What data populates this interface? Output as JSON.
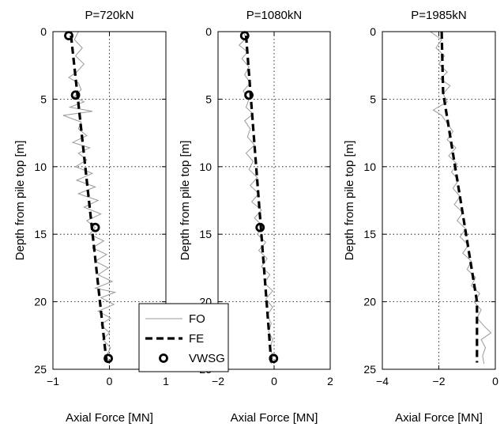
{
  "figure": {
    "ylabel": "Depth from pile top [m]",
    "xlabel": "Axial Force [MN]"
  },
  "legend": {
    "entries": [
      "FO",
      "FE",
      "VWSG"
    ]
  },
  "chart_data": [
    {
      "type": "line",
      "title": "P=720kN",
      "xlabel": "Axial Force [MN]",
      "ylabel": "Depth from pile top [m]",
      "xlim": [
        -1,
        1
      ],
      "ylim": [
        0,
        25
      ],
      "y_reversed": true,
      "xticks": [
        -1,
        0,
        1
      ],
      "yticks": [
        0,
        5,
        10,
        15,
        20,
        25
      ],
      "grid": true,
      "series": [
        {
          "name": "FO",
          "style": "thin gray solid",
          "points": [
            [
              -0.55,
              0
            ],
            [
              -0.62,
              0.6
            ],
            [
              -0.48,
              1.2
            ],
            [
              -0.6,
              1.8
            ],
            [
              -0.45,
              2.4
            ],
            [
              -0.58,
              3.0
            ],
            [
              -0.72,
              3.4
            ],
            [
              -0.55,
              3.8
            ],
            [
              -0.5,
              4.3
            ],
            [
              -0.62,
              4.8
            ],
            [
              -0.45,
              5.2
            ],
            [
              -0.7,
              5.6
            ],
            [
              -0.3,
              5.9
            ],
            [
              -0.82,
              6.2
            ],
            [
              -0.5,
              6.7
            ],
            [
              -0.55,
              7.2
            ],
            [
              -0.4,
              7.7
            ],
            [
              -0.65,
              8.2
            ],
            [
              -0.35,
              8.6
            ],
            [
              -0.55,
              9.0
            ],
            [
              -0.4,
              9.5
            ],
            [
              -0.6,
              10.0
            ],
            [
              -0.3,
              10.5
            ],
            [
              -0.58,
              11.0
            ],
            [
              -0.25,
              11.5
            ],
            [
              -0.55,
              12.0
            ],
            [
              -0.2,
              12.5
            ],
            [
              -0.45,
              13.0
            ],
            [
              -0.15,
              13.5
            ],
            [
              -0.4,
              14.0
            ],
            [
              -0.25,
              14.5
            ],
            [
              -0.35,
              15.0
            ],
            [
              -0.1,
              15.5
            ],
            [
              -0.3,
              16.0
            ],
            [
              -0.05,
              16.5
            ],
            [
              -0.25,
              17.0
            ],
            [
              -0.02,
              17.5
            ],
            [
              -0.2,
              18.0
            ],
            [
              0.05,
              18.5
            ],
            [
              -0.25,
              19.0
            ],
            [
              0.1,
              19.3
            ],
            [
              -0.15,
              19.7
            ],
            [
              0.08,
              20.2
            ],
            [
              -0.2,
              20.7
            ],
            [
              0.02,
              21.2
            ],
            [
              -0.15,
              21.7
            ],
            [
              0.0,
              22.3
            ],
            [
              -0.12,
              22.8
            ],
            [
              0.02,
              23.4
            ],
            [
              -0.05,
              24.0
            ],
            [
              0.0,
              24.5
            ]
          ]
        },
        {
          "name": "FE",
          "style": "thick black dashed",
          "points": [
            [
              -0.68,
              0.3
            ],
            [
              -0.05,
              24.5
            ]
          ]
        },
        {
          "name": "VWSG",
          "style": "open circle markers",
          "points": [
            [
              -0.72,
              0.3
            ],
            [
              -0.6,
              4.7
            ],
            [
              -0.25,
              14.5
            ],
            [
              -0.02,
              24.2
            ]
          ]
        }
      ]
    },
    {
      "type": "line",
      "title": "P=1080kN",
      "xlabel": "Axial Force [MN]",
      "ylabel": "Depth from pile top [m]",
      "xlim": [
        -2,
        2
      ],
      "ylim": [
        0,
        25
      ],
      "y_reversed": true,
      "xticks": [
        -2,
        0,
        2
      ],
      "yticks": [
        0,
        5,
        10,
        15,
        20,
        25
      ],
      "grid": true,
      "series": [
        {
          "name": "FO",
          "style": "thin gray solid",
          "points": [
            [
              -1.1,
              0
            ],
            [
              -1.0,
              0.5
            ],
            [
              -1.25,
              1.0
            ],
            [
              -0.95,
              1.5
            ],
            [
              -1.15,
              2.0
            ],
            [
              -0.9,
              2.6
            ],
            [
              -1.05,
              3.2
            ],
            [
              -0.85,
              3.8
            ],
            [
              -1.1,
              4.4
            ],
            [
              -0.9,
              5.0
            ],
            [
              -1.0,
              5.6
            ],
            [
              -0.75,
              6.1
            ],
            [
              -1.05,
              6.6
            ],
            [
              -0.85,
              7.2
            ],
            [
              -0.95,
              7.8
            ],
            [
              -0.7,
              8.4
            ],
            [
              -1.0,
              9.0
            ],
            [
              -0.75,
              9.6
            ],
            [
              -0.9,
              10.2
            ],
            [
              -0.6,
              10.8
            ],
            [
              -0.85,
              11.4
            ],
            [
              -0.55,
              12.0
            ],
            [
              -0.8,
              12.6
            ],
            [
              -0.45,
              13.2
            ],
            [
              -0.7,
              13.8
            ],
            [
              -0.4,
              14.4
            ],
            [
              -0.6,
              15.0
            ],
            [
              -0.3,
              15.6
            ],
            [
              -0.55,
              16.2
            ],
            [
              -0.25,
              16.8
            ],
            [
              -0.45,
              17.4
            ],
            [
              -0.15,
              18.0
            ],
            [
              -0.35,
              18.6
            ],
            [
              -0.05,
              19.2
            ],
            [
              -0.3,
              19.8
            ],
            [
              -0.05,
              20.4
            ],
            [
              -0.25,
              21.0
            ],
            [
              -0.1,
              21.6
            ],
            [
              -0.2,
              22.2
            ],
            [
              -0.05,
              22.8
            ],
            [
              -0.15,
              23.4
            ],
            [
              -0.05,
              24.0
            ],
            [
              -0.1,
              24.6
            ]
          ]
        },
        {
          "name": "FE",
          "style": "thick black dashed",
          "points": [
            [
              -1.0,
              0.3
            ],
            [
              -0.1,
              24.5
            ]
          ]
        },
        {
          "name": "VWSG",
          "style": "open circle markers",
          "points": [
            [
              -1.05,
              0.3
            ],
            [
              -0.9,
              4.7
            ],
            [
              -0.5,
              14.5
            ],
            [
              -0.02,
              24.2
            ]
          ]
        }
      ]
    },
    {
      "type": "line",
      "title": "P=1985kN",
      "xlabel": "Axial Force [MN]",
      "ylabel": "Depth from pile top [m]",
      "xlim": [
        -4,
        0
      ],
      "ylim": [
        0,
        25
      ],
      "y_reversed": true,
      "xticks": [
        -4,
        -2,
        0
      ],
      "yticks": [
        0,
        5,
        10,
        15,
        20,
        25
      ],
      "grid": true,
      "series": [
        {
          "name": "FO",
          "style": "thin gray solid",
          "points": [
            [
              -2.3,
              0.0
            ],
            [
              -1.9,
              0.6
            ],
            [
              -2.1,
              1.2
            ],
            [
              -1.8,
              1.8
            ],
            [
              -2.0,
              2.4
            ],
            [
              -1.7,
              3.0
            ],
            [
              -1.95,
              3.5
            ],
            [
              -1.6,
              4.0
            ],
            [
              -1.85,
              4.6
            ],
            [
              -1.7,
              5.2
            ],
            [
              -2.2,
              5.8
            ],
            [
              -1.9,
              6.2
            ],
            [
              -1.7,
              6.8
            ],
            [
              -1.5,
              7.4
            ],
            [
              -1.7,
              8.0
            ],
            [
              -1.4,
              8.6
            ],
            [
              -1.65,
              9.2
            ],
            [
              -1.35,
              9.8
            ],
            [
              -1.55,
              10.4
            ],
            [
              -1.3,
              11.0
            ],
            [
              -1.5,
              11.6
            ],
            [
              -1.25,
              12.2
            ],
            [
              -1.45,
              12.8
            ],
            [
              -1.15,
              13.4
            ],
            [
              -1.35,
              14.0
            ],
            [
              -1.05,
              14.6
            ],
            [
              -1.25,
              15.2
            ],
            [
              -0.95,
              15.8
            ],
            [
              -1.15,
              16.4
            ],
            [
              -0.85,
              17.0
            ],
            [
              -1.0,
              17.6
            ],
            [
              -0.7,
              18.2
            ],
            [
              -0.85,
              18.8
            ],
            [
              -0.55,
              19.4
            ],
            [
              -0.75,
              20.0
            ],
            [
              -0.5,
              20.6
            ],
            [
              -0.65,
              21.2
            ],
            [
              -0.4,
              21.8
            ],
            [
              -0.15,
              22.3
            ],
            [
              -0.5,
              22.8
            ],
            [
              -0.35,
              23.4
            ],
            [
              -0.45,
              24.0
            ],
            [
              -0.4,
              24.6
            ]
          ]
        },
        {
          "name": "FE",
          "style": "thick black dashed",
          "points": [
            [
              -1.9,
              0
            ],
            [
              -1.85,
              4.5
            ],
            [
              -0.65,
              20
            ],
            [
              -0.65,
              24.5
            ]
          ]
        }
      ]
    }
  ]
}
